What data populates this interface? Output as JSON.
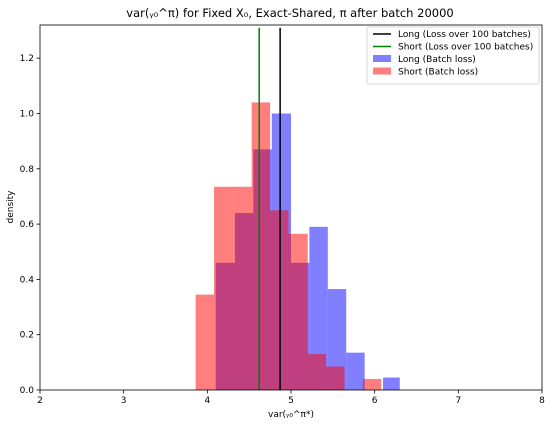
{
  "chart_data": {
    "type": "bar",
    "subtype": "histogram",
    "title": "var(ᵧ₀^π) for Fixed X₀, Exact-Shared, π after batch 20000",
    "xlabel": "var(ᵧ₀^π*)",
    "ylabel": "density",
    "xlim": [
      2,
      8
    ],
    "ylim": [
      0,
      1.32
    ],
    "xticks": [
      "2",
      "3",
      "4",
      "5",
      "6",
      "7",
      "8"
    ],
    "yticks": [
      "0.0",
      "0.2",
      "0.4",
      "0.6",
      "0.8",
      "1.0",
      "1.2"
    ],
    "legend_position": "top-right",
    "series": [
      {
        "name": "Long (Batch loss)",
        "kind": "hist",
        "color": "#0000ff",
        "alpha": 0.5,
        "bins": [
          {
            "x0": 4.1,
            "x1": 4.33,
            "value": 0.46
          },
          {
            "x0": 4.33,
            "x1": 4.55,
            "value": 0.64
          },
          {
            "x0": 4.55,
            "x1": 4.77,
            "value": 0.87
          },
          {
            "x0": 4.77,
            "x1": 5.0,
            "value": 1.0
          },
          {
            "x0": 5.0,
            "x1": 5.22,
            "value": 0.46
          },
          {
            "x0": 5.22,
            "x1": 5.44,
            "value": 0.59
          },
          {
            "x0": 5.44,
            "x1": 5.66,
            "value": 0.365
          },
          {
            "x0": 5.66,
            "x1": 5.88,
            "value": 0.135
          },
          {
            "x0": 6.1,
            "x1": 6.3,
            "value": 0.045
          }
        ]
      },
      {
        "name": "Short (Batch loss)",
        "kind": "hist",
        "color": "#ff0000",
        "alpha": 0.5,
        "bins": [
          {
            "x0": 3.86,
            "x1": 4.08,
            "value": 0.345
          },
          {
            "x0": 4.08,
            "x1": 4.31,
            "value": 0.735
          },
          {
            "x0": 4.31,
            "x1": 4.53,
            "value": 0.735
          },
          {
            "x0": 4.53,
            "x1": 4.75,
            "value": 1.04
          },
          {
            "x0": 4.75,
            "x1": 4.97,
            "value": 0.65
          },
          {
            "x0": 4.97,
            "x1": 5.2,
            "value": 0.565
          },
          {
            "x0": 5.2,
            "x1": 5.42,
            "value": 0.13
          },
          {
            "x0": 5.42,
            "x1": 5.64,
            "value": 0.085
          },
          {
            "x0": 5.86,
            "x1": 6.08,
            "value": 0.04
          }
        ]
      },
      {
        "name": "Long (Loss over 100 batches)",
        "kind": "vline",
        "color": "#000000",
        "x": 4.87,
        "y_top": 1.31
      },
      {
        "name": "Short (Loss over 100 batches)",
        "kind": "vline",
        "color": "#008000",
        "x": 4.62,
        "y_top": 1.31
      }
    ]
  }
}
